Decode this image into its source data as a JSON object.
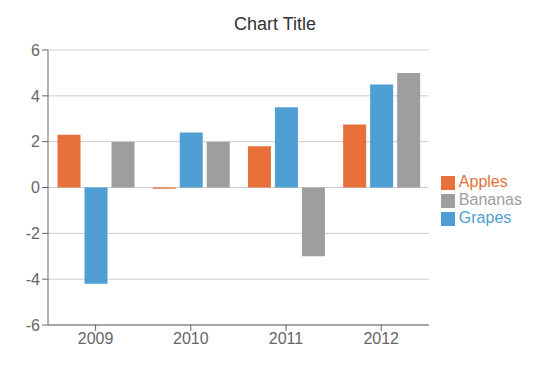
{
  "chart_data": {
    "type": "bar",
    "title": "Chart Title",
    "categories": [
      "2009",
      "2010",
      "2011",
      "2012"
    ],
    "series": [
      {
        "name": "Apples",
        "color": "#E8703A",
        "values": [
          2.3,
          -0.05,
          1.8,
          2.75
        ]
      },
      {
        "name": "Grapes",
        "color": "#4F9FD4",
        "values": [
          -4.2,
          2.4,
          3.5,
          4.5
        ]
      },
      {
        "name": "Bananas",
        "color": "#9E9E9E",
        "values": [
          2.0,
          2.0,
          -3.0,
          5.0
        ]
      }
    ],
    "ylim": [
      -6,
      6
    ],
    "yticks": [
      -6,
      -4,
      -2,
      0,
      2,
      4,
      6
    ],
    "grid": true,
    "legend": "right"
  }
}
